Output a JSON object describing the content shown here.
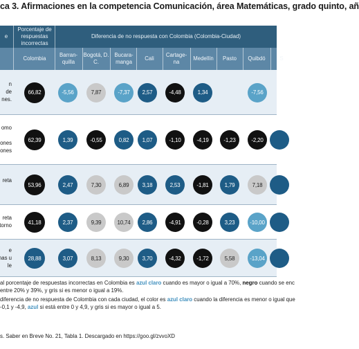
{
  "title": "ca 3. Afirmaciones en la competencia Comunicación, área Matemáticas, grado quinto, añ",
  "header": {
    "pct_label": "Porcentaje de respuestas incorrectas",
    "diff_label": "Diferencia de no respuesta con Colombia (Colombia-Ciudad)",
    "left_label": "e"
  },
  "columns": [
    "Colombia",
    "Barran-quilla",
    "Bogotá, D. C.",
    "Bucara-manga",
    "Cali",
    "Cartage-na",
    "Medellín",
    "Pasto",
    "Quibdó",
    "S"
  ],
  "rows": [
    {
      "desc": [
        "n",
        "de",
        "nes."
      ],
      "cells": [
        {
          "v": "66,82",
          "c": "black"
        },
        {
          "v": "-5,56",
          "c": "lblue"
        },
        {
          "v": "7,87",
          "c": "gray"
        },
        {
          "v": "-7,37",
          "c": "lblue"
        },
        {
          "v": "2,57",
          "c": "blue"
        },
        {
          "v": "-4,48",
          "c": "black"
        },
        {
          "v": "1,34",
          "c": "blue"
        },
        {
          "v": "",
          "c": "none"
        },
        {
          "v": "-7,56",
          "c": "lblue"
        },
        {
          "v": "",
          "c": "none"
        }
      ]
    },
    {
      "desc": [
        "omo",
        "",
        "ones",
        "iciones"
      ],
      "cells": [
        {
          "v": "62,39",
          "c": "black"
        },
        {
          "v": "1,39",
          "c": "blue"
        },
        {
          "v": "-0,55",
          "c": "black"
        },
        {
          "v": "0,82",
          "c": "blue"
        },
        {
          "v": "1,07",
          "c": "blue"
        },
        {
          "v": "-1,10",
          "c": "black"
        },
        {
          "v": "-4,19",
          "c": "black"
        },
        {
          "v": "-1,23",
          "c": "black"
        },
        {
          "v": "-2,20",
          "c": "black"
        },
        {
          "v": "",
          "c": "blue"
        }
      ]
    },
    {
      "desc": [
        "reta",
        ""
      ],
      "cells": [
        {
          "v": "53,96",
          "c": "black"
        },
        {
          "v": "2,47",
          "c": "blue"
        },
        {
          "v": "7,30",
          "c": "gray"
        },
        {
          "v": "6,89",
          "c": "gray"
        },
        {
          "v": "3,18",
          "c": "blue"
        },
        {
          "v": "2,53",
          "c": "blue"
        },
        {
          "v": "-1,81",
          "c": "black"
        },
        {
          "v": "1,79",
          "c": "blue"
        },
        {
          "v": "7,18",
          "c": "gray"
        },
        {
          "v": "",
          "c": "blue"
        }
      ]
    },
    {
      "desc": [
        "reta",
        "ntorno"
      ],
      "cells": [
        {
          "v": "41,18",
          "c": "black"
        },
        {
          "v": "2,37",
          "c": "blue"
        },
        {
          "v": "9,39",
          "c": "gray"
        },
        {
          "v": "10,74",
          "c": "gray"
        },
        {
          "v": "2,86",
          "c": "blue"
        },
        {
          "v": "-4,91",
          "c": "black"
        },
        {
          "v": "-0,28",
          "c": "black"
        },
        {
          "v": "3,23",
          "c": "blue"
        },
        {
          "v": "-10,00",
          "c": "lblue"
        },
        {
          "v": "",
          "c": "blue"
        }
      ]
    },
    {
      "desc": [
        "e",
        "nas u",
        "le"
      ],
      "cells": [
        {
          "v": "28,88",
          "c": "blue"
        },
        {
          "v": "3,07",
          "c": "blue"
        },
        {
          "v": "8,13",
          "c": "gray"
        },
        {
          "v": "9,30",
          "c": "gray"
        },
        {
          "v": "3,70",
          "c": "blue"
        },
        {
          "v": "-4,32",
          "c": "black"
        },
        {
          "v": "-1,72",
          "c": "black"
        },
        {
          "v": "5,58",
          "c": "gray"
        },
        {
          "v": "-13,04",
          "c": "lblue"
        },
        {
          "v": "",
          "c": "blue"
        }
      ]
    }
  ],
  "notes": {
    "n1_a": "al porcentaje de respuestas incorrectas en Colombia es ",
    "n1_b": "azul claro",
    "n1_c": " cuando es mayor o igual a 70%, ",
    "n1_d": "negro",
    "n1_e": " cuando se enc",
    "n2": "entre 20% y 39%, y gris si es menor o igual a 19%.",
    "n3_a": "diferencia de no respuesta de Colombia con cada ciudad, el color es ",
    "n3_b": "azul claro",
    "n3_c": " cuando la diferencia es menor o igual que",
    "n4_a": "-0,1 y -4,9, ",
    "n4_b": "azul",
    "n4_c": " si está entre 0 y 4,9, y gris si es mayor o igual a 5."
  },
  "source": "s. Saber en Breve No. 21, Tabla 1. Descargado en https://goo.gl/zvvoXD",
  "colors": {
    "black": "#111111",
    "lblue": "#5aa3c8",
    "blue": "#1e5c86",
    "gray": "#c9c9c9",
    "header": "#2f5e7d"
  }
}
